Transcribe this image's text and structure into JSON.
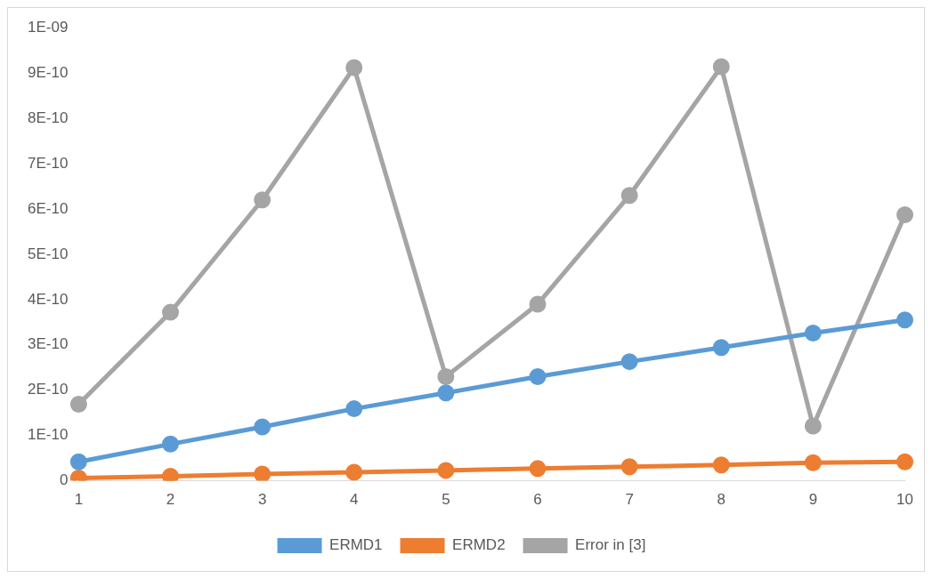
{
  "chart_data": {
    "type": "line",
    "categories": [
      "1",
      "2",
      "3",
      "4",
      "5",
      "6",
      "7",
      "8",
      "9",
      "10"
    ],
    "series": [
      {
        "name": "ERMD1",
        "color": "#5b9bd5",
        "values": [
          4.2e-11,
          8.1e-11,
          1.19e-10,
          1.59e-10,
          1.94e-10,
          2.3e-10,
          2.63e-10,
          2.94e-10,
          3.26e-10,
          3.55e-10
        ]
      },
      {
        "name": "ERMD2",
        "color": "#ed7d31",
        "values": [
          6e-12,
          1e-11,
          1.5e-11,
          1.9e-11,
          2.3e-11,
          2.7e-11,
          3.1e-11,
          3.5e-11,
          4e-11,
          4.2e-11
        ]
      },
      {
        "name": "Error in [3]",
        "color": "#a5a5a5",
        "values": [
          1.69e-10,
          3.72e-10,
          6.2e-10,
          9.12e-10,
          2.3e-10,
          3.9e-10,
          6.3e-10,
          9.14e-10,
          1.21e-10,
          5.87e-10
        ]
      }
    ],
    "ylim": [
      0,
      1e-09
    ],
    "yticks": [
      0,
      {
        "value": 1e-10,
        "label": "1E-10"
      },
      {
        "value": 2e-10,
        "label": "2E-10"
      },
      {
        "value": 3e-10,
        "label": "3E-10"
      },
      {
        "value": 4e-10,
        "label": "4E-10"
      },
      {
        "value": 5e-10,
        "label": "5E-10"
      },
      {
        "value": 6e-10,
        "label": "6E-10"
      },
      {
        "value": 7e-10,
        "label": "7E-10"
      },
      {
        "value": 8e-10,
        "label": "8E-10"
      },
      {
        "value": 9e-10,
        "label": "9E-10"
      },
      {
        "value": 1e-09,
        "label": "1E-09"
      }
    ],
    "grid": false,
    "legend": "bottom",
    "marker": "circle",
    "line_style": "solid"
  }
}
